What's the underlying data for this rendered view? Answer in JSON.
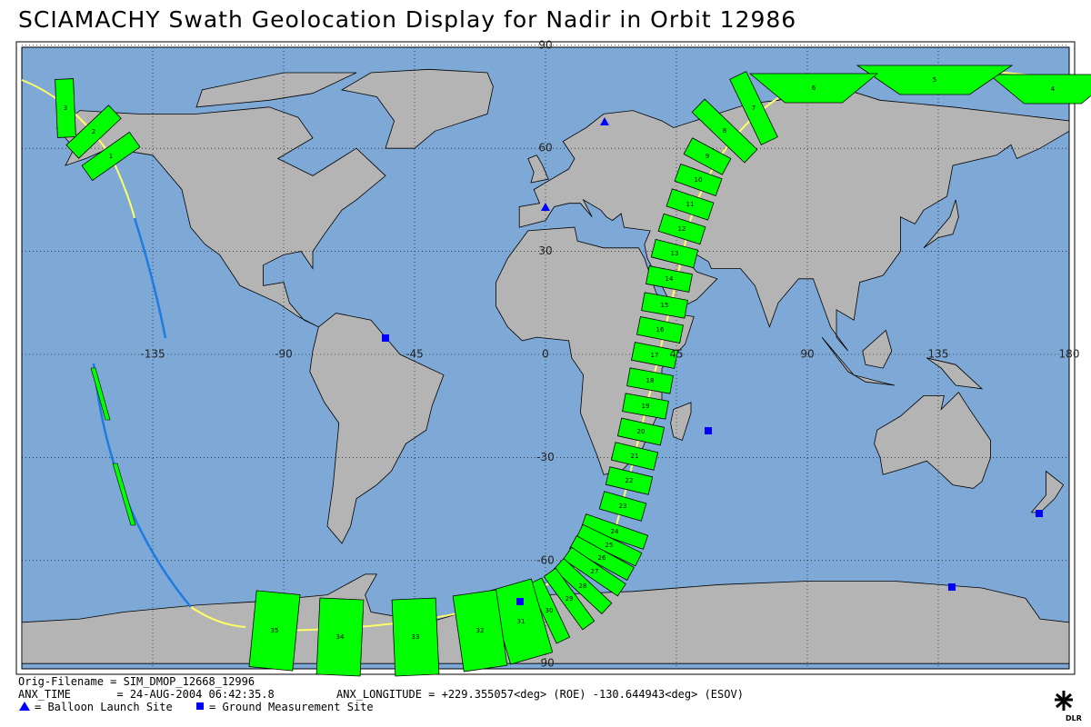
{
  "title": "SCIAMACHY Swath Geolocation Display for Nadir in Orbit 12986",
  "map": {
    "lon_ticks": [
      -135,
      -90,
      -45,
      0,
      45,
      90,
      135,
      180
    ],
    "lat_ticks": [
      90,
      60,
      30,
      -30,
      -60,
      -90
    ],
    "swath_labels": [
      "1",
      "2",
      "3",
      "4",
      "5",
      "6",
      "7",
      "8",
      "9",
      "10",
      "11",
      "12",
      "13",
      "14",
      "15",
      "16",
      "17",
      "18",
      "19",
      "20",
      "21",
      "22",
      "23",
      "24",
      "25",
      "26",
      "27",
      "28",
      "29",
      "30",
      "31",
      "32",
      "33",
      "34",
      "35"
    ]
  },
  "footer": {
    "filename": "Orig-Filename = SIM_DMOP_12668_12996",
    "anx_time": "ANX_TIME       = 24-AUG-2004 06:42:35.8",
    "anx_longitude": "ANX_LONGITUDE = +229.355057<deg> (ROE) -130.644943<deg> (ESOV)",
    "legend": [
      "= Balloon Launch Site",
      "= Ground Measurement Site"
    ],
    "logo": "DLR"
  }
}
